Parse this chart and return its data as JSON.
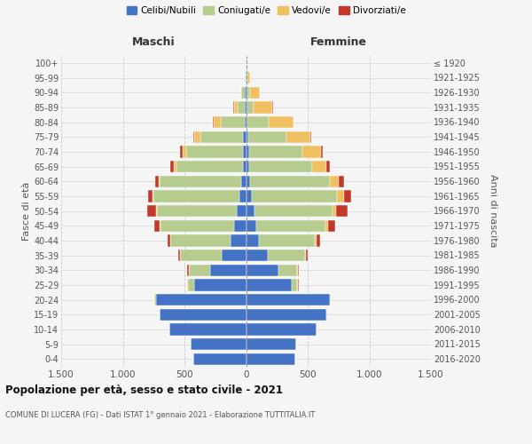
{
  "age_groups": [
    "0-4",
    "5-9",
    "10-14",
    "15-19",
    "20-24",
    "25-29",
    "30-34",
    "35-39",
    "40-44",
    "45-49",
    "50-54",
    "55-59",
    "60-64",
    "65-69",
    "70-74",
    "75-79",
    "80-84",
    "85-89",
    "90-94",
    "95-99",
    "100+"
  ],
  "birth_years": [
    "2016-2020",
    "2011-2015",
    "2006-2010",
    "2001-2005",
    "1996-2000",
    "1991-1995",
    "1986-1990",
    "1981-1985",
    "1976-1980",
    "1971-1975",
    "1966-1970",
    "1961-1965",
    "1956-1960",
    "1951-1955",
    "1946-1950",
    "1941-1945",
    "1936-1940",
    "1931-1935",
    "1926-1930",
    "1921-1925",
    "≤ 1920"
  ],
  "maschi": {
    "celibi": [
      430,
      450,
      620,
      700,
      730,
      420,
      290,
      195,
      125,
      95,
      75,
      55,
      38,
      28,
      28,
      28,
      14,
      13,
      8,
      5,
      2
    ],
    "coniugati": [
      0,
      0,
      0,
      5,
      12,
      50,
      175,
      340,
      490,
      600,
      650,
      700,
      660,
      540,
      460,
      340,
      190,
      55,
      28,
      8,
      2
    ],
    "vedovi": [
      0,
      0,
      0,
      0,
      0,
      5,
      2,
      2,
      2,
      5,
      5,
      5,
      10,
      18,
      28,
      55,
      58,
      28,
      5,
      0,
      0
    ],
    "divorziati": [
      0,
      0,
      0,
      0,
      0,
      5,
      10,
      14,
      20,
      45,
      75,
      38,
      32,
      28,
      18,
      5,
      5,
      5,
      2,
      0,
      0
    ]
  },
  "femmine": {
    "nubili": [
      400,
      410,
      570,
      650,
      680,
      370,
      260,
      175,
      105,
      85,
      70,
      50,
      32,
      25,
      22,
      20,
      12,
      10,
      8,
      4,
      2
    ],
    "coniugate": [
      0,
      0,
      0,
      5,
      10,
      45,
      155,
      305,
      455,
      560,
      630,
      690,
      645,
      510,
      435,
      310,
      175,
      48,
      22,
      7,
      2
    ],
    "vedove": [
      0,
      0,
      0,
      0,
      0,
      5,
      3,
      5,
      10,
      20,
      28,
      52,
      78,
      118,
      148,
      195,
      195,
      155,
      78,
      18,
      3
    ],
    "divorziate": [
      0,
      0,
      0,
      0,
      0,
      5,
      10,
      18,
      28,
      58,
      95,
      58,
      38,
      28,
      18,
      5,
      5,
      5,
      2,
      0,
      0
    ]
  },
  "colors": {
    "celibi": "#4472c4",
    "coniugati": "#b5cc8e",
    "vedovi": "#f0c060",
    "divorziati": "#c0392b"
  },
  "xlim": 1500,
  "title": "Popolazione per età, sesso e stato civile - 2021",
  "subtitle": "COMUNE DI LUCERA (FG) - Dati ISTAT 1° gennaio 2021 - Elaborazione TUTTITALIA.IT",
  "ylabel_left": "Fasce di età",
  "ylabel_right": "Anni di nascita",
  "xlabel_left": "Maschi",
  "xlabel_right": "Femmine",
  "bg_color": "#f5f5f5",
  "grid_color": "#cccccc"
}
